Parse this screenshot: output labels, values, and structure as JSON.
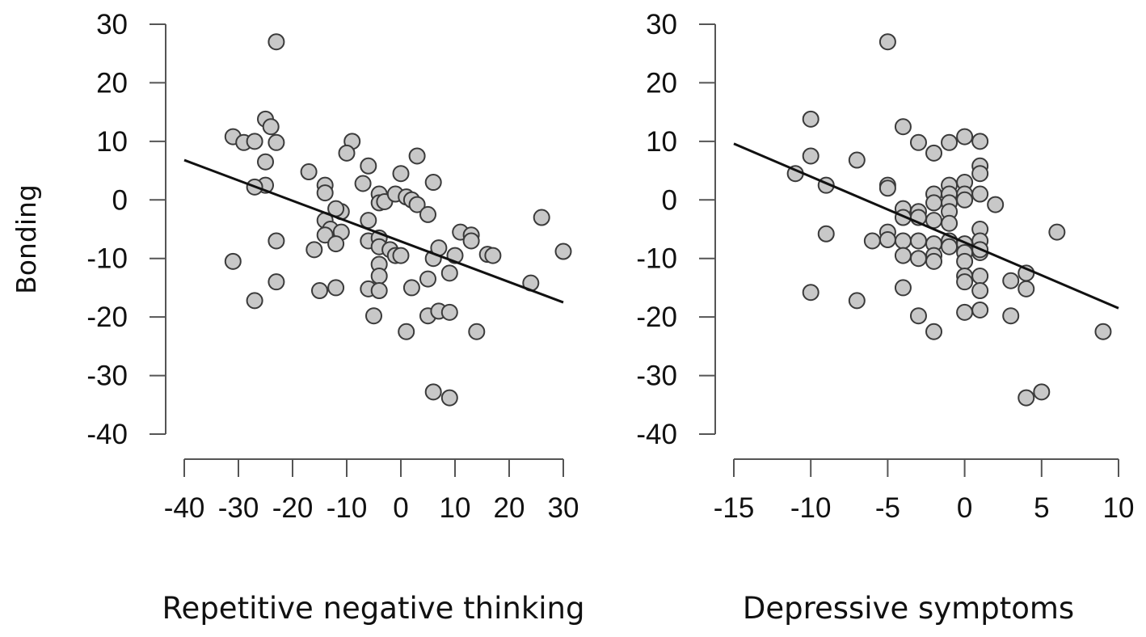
{
  "ylabel": "Bonding",
  "chart_data": [
    {
      "type": "scatter",
      "xlabel": "Repetitive negative thinking",
      "ylabel": "Bonding",
      "xlim": [
        -40,
        30
      ],
      "ylim": [
        -40,
        30
      ],
      "xticks": [
        -40,
        -30,
        -20,
        -10,
        0,
        10,
        20,
        30
      ],
      "xtick_labels": [
        "-40",
        "-30",
        "-20",
        "-10",
        "0",
        "10",
        "20",
        "30"
      ],
      "yticks": [
        30,
        20,
        10,
        0,
        -10,
        -20,
        -30,
        -40
      ],
      "ytick_labels": [
        "30",
        "20",
        "10",
        "0",
        "-10",
        "-20",
        "-30",
        "-40"
      ],
      "fit_line": {
        "x": [
          -40,
          30
        ],
        "y": [
          6.8,
          -17.5
        ]
      },
      "points": [
        [
          -23,
          27
        ],
        [
          -25,
          13.8
        ],
        [
          -24,
          12.5
        ],
        [
          -31,
          10.8
        ],
        [
          -29,
          9.8
        ],
        [
          -27,
          10
        ],
        [
          -23,
          9.8
        ],
        [
          -25,
          6.5
        ],
        [
          -25,
          2.5
        ],
        [
          -27,
          2.2
        ],
        [
          -17,
          4.8
        ],
        [
          -14,
          2.5
        ],
        [
          -14,
          1.2
        ],
        [
          -9,
          10
        ],
        [
          -10,
          8
        ],
        [
          -6,
          5.8
        ],
        [
          -7,
          2.8
        ],
        [
          0,
          4.5
        ],
        [
          3,
          7.5
        ],
        [
          6,
          3
        ],
        [
          -4,
          1
        ],
        [
          -4,
          -0.5
        ],
        [
          -3,
          -0.3
        ],
        [
          -1,
          1
        ],
        [
          1,
          0.5
        ],
        [
          2,
          0
        ],
        [
          3,
          -0.8
        ],
        [
          5,
          -2.5
        ],
        [
          -11,
          -2
        ],
        [
          -12,
          -1.5
        ],
        [
          -14,
          -3.5
        ],
        [
          -13,
          -5
        ],
        [
          -11,
          -5.5
        ],
        [
          -14,
          -6
        ],
        [
          -12,
          -7.5
        ],
        [
          -16,
          -8.5
        ],
        [
          -6,
          -3.5
        ],
        [
          -6,
          -7
        ],
        [
          -4,
          -6.5
        ],
        [
          -4,
          -8
        ],
        [
          -2,
          -8.5
        ],
        [
          -1,
          -9.5
        ],
        [
          0,
          -9.5
        ],
        [
          -4,
          -11
        ],
        [
          -4,
          -13
        ],
        [
          -6,
          -15.2
        ],
        [
          -4,
          -15.5
        ],
        [
          -5,
          -19.8
        ],
        [
          -15,
          -15.5
        ],
        [
          -12,
          -15
        ],
        [
          -23,
          -7
        ],
        [
          -31,
          -10.5
        ],
        [
          -23,
          -14
        ],
        [
          -27,
          -17.2
        ],
        [
          1,
          -22.5
        ],
        [
          2,
          -15
        ],
        [
          5,
          -13.5
        ],
        [
          6,
          -10
        ],
        [
          7,
          -8.2
        ],
        [
          9,
          -12.5
        ],
        [
          10,
          -9.5
        ],
        [
          11,
          -5.5
        ],
        [
          13,
          -6
        ],
        [
          13,
          -7
        ],
        [
          16,
          -9.3
        ],
        [
          17,
          -9.5
        ],
        [
          24,
          -14.2
        ],
        [
          26,
          -3
        ],
        [
          30,
          -8.8
        ],
        [
          14,
          -22.5
        ],
        [
          5,
          -19.8
        ],
        [
          7,
          -19
        ],
        [
          9,
          -19.2
        ],
        [
          6,
          -32.8
        ],
        [
          9,
          -33.8
        ]
      ]
    },
    {
      "type": "scatter",
      "xlabel": "Depressive symptoms",
      "ylabel": "Bonding",
      "xlim": [
        -15,
        10
      ],
      "ylim": [
        -40,
        30
      ],
      "xticks": [
        -15,
        -10,
        -5,
        0,
        5,
        10
      ],
      "xtick_labels": [
        "-15",
        "-10",
        "-5",
        "0",
        "5",
        "10"
      ],
      "yticks": [
        30,
        20,
        10,
        0,
        -10,
        -20,
        -30,
        -40
      ],
      "ytick_labels": [
        "30",
        "20",
        "10",
        "0",
        "-10",
        "-20",
        "-30",
        "-40"
      ],
      "fit_line": {
        "x": [
          -15,
          10
        ],
        "y": [
          9.6,
          -18.5
        ]
      },
      "points": [
        [
          -5,
          27
        ],
        [
          -10,
          13.8
        ],
        [
          -4,
          12.5
        ],
        [
          -3,
          9.8
        ],
        [
          -1,
          9.8
        ],
        [
          0,
          10.8
        ],
        [
          1,
          10
        ],
        [
          -2,
          8
        ],
        [
          -10,
          7.5
        ],
        [
          -7,
          6.8
        ],
        [
          -11,
          4.5
        ],
        [
          1,
          5.8
        ],
        [
          1,
          4.5
        ],
        [
          -9,
          2.5
        ],
        [
          -5,
          2.5
        ],
        [
          -5,
          2
        ],
        [
          -1,
          2.5
        ],
        [
          0,
          3
        ],
        [
          -2,
          1
        ],
        [
          -1,
          1
        ],
        [
          0,
          1
        ],
        [
          1,
          1
        ],
        [
          -2,
          -0.5
        ],
        [
          -1,
          -0.5
        ],
        [
          0,
          0
        ],
        [
          2,
          -0.8
        ],
        [
          -4,
          -1.5
        ],
        [
          -3,
          -2
        ],
        [
          -1,
          -2
        ],
        [
          -4,
          -3
        ],
        [
          -3,
          -3
        ],
        [
          -2,
          -3.5
        ],
        [
          -1,
          -4
        ],
        [
          -5,
          -5.5
        ],
        [
          1,
          -5
        ],
        [
          -9,
          -5.8
        ],
        [
          -6,
          -7
        ],
        [
          -5,
          -6.8
        ],
        [
          -4,
          -7
        ],
        [
          -3,
          -7
        ],
        [
          -2,
          -7.5
        ],
        [
          -1,
          -7
        ],
        [
          0,
          -7.5
        ],
        [
          1,
          -7
        ],
        [
          -4,
          -9.5
        ],
        [
          -3,
          -10
        ],
        [
          -2,
          -9.5
        ],
        [
          -2,
          -10.5
        ],
        [
          -1,
          -8
        ],
        [
          0,
          -9
        ],
        [
          0,
          -10.5
        ],
        [
          1,
          -9
        ],
        [
          1,
          -8.5
        ],
        [
          6,
          -5.5
        ],
        [
          0,
          -13
        ],
        [
          0,
          -14
        ],
        [
          1,
          -13
        ],
        [
          1,
          -15.5
        ],
        [
          -10,
          -15.8
        ],
        [
          -7,
          -17.2
        ],
        [
          -4,
          -15
        ],
        [
          -3,
          -19.8
        ],
        [
          -2,
          -22.5
        ],
        [
          0,
          -19.2
        ],
        [
          1,
          -18.8
        ],
        [
          3,
          -13.8
        ],
        [
          3,
          -19.8
        ],
        [
          4,
          -12.5
        ],
        [
          4,
          -15.2
        ],
        [
          9,
          -22.5
        ],
        [
          4,
          -33.8
        ],
        [
          5,
          -32.8
        ]
      ]
    }
  ]
}
